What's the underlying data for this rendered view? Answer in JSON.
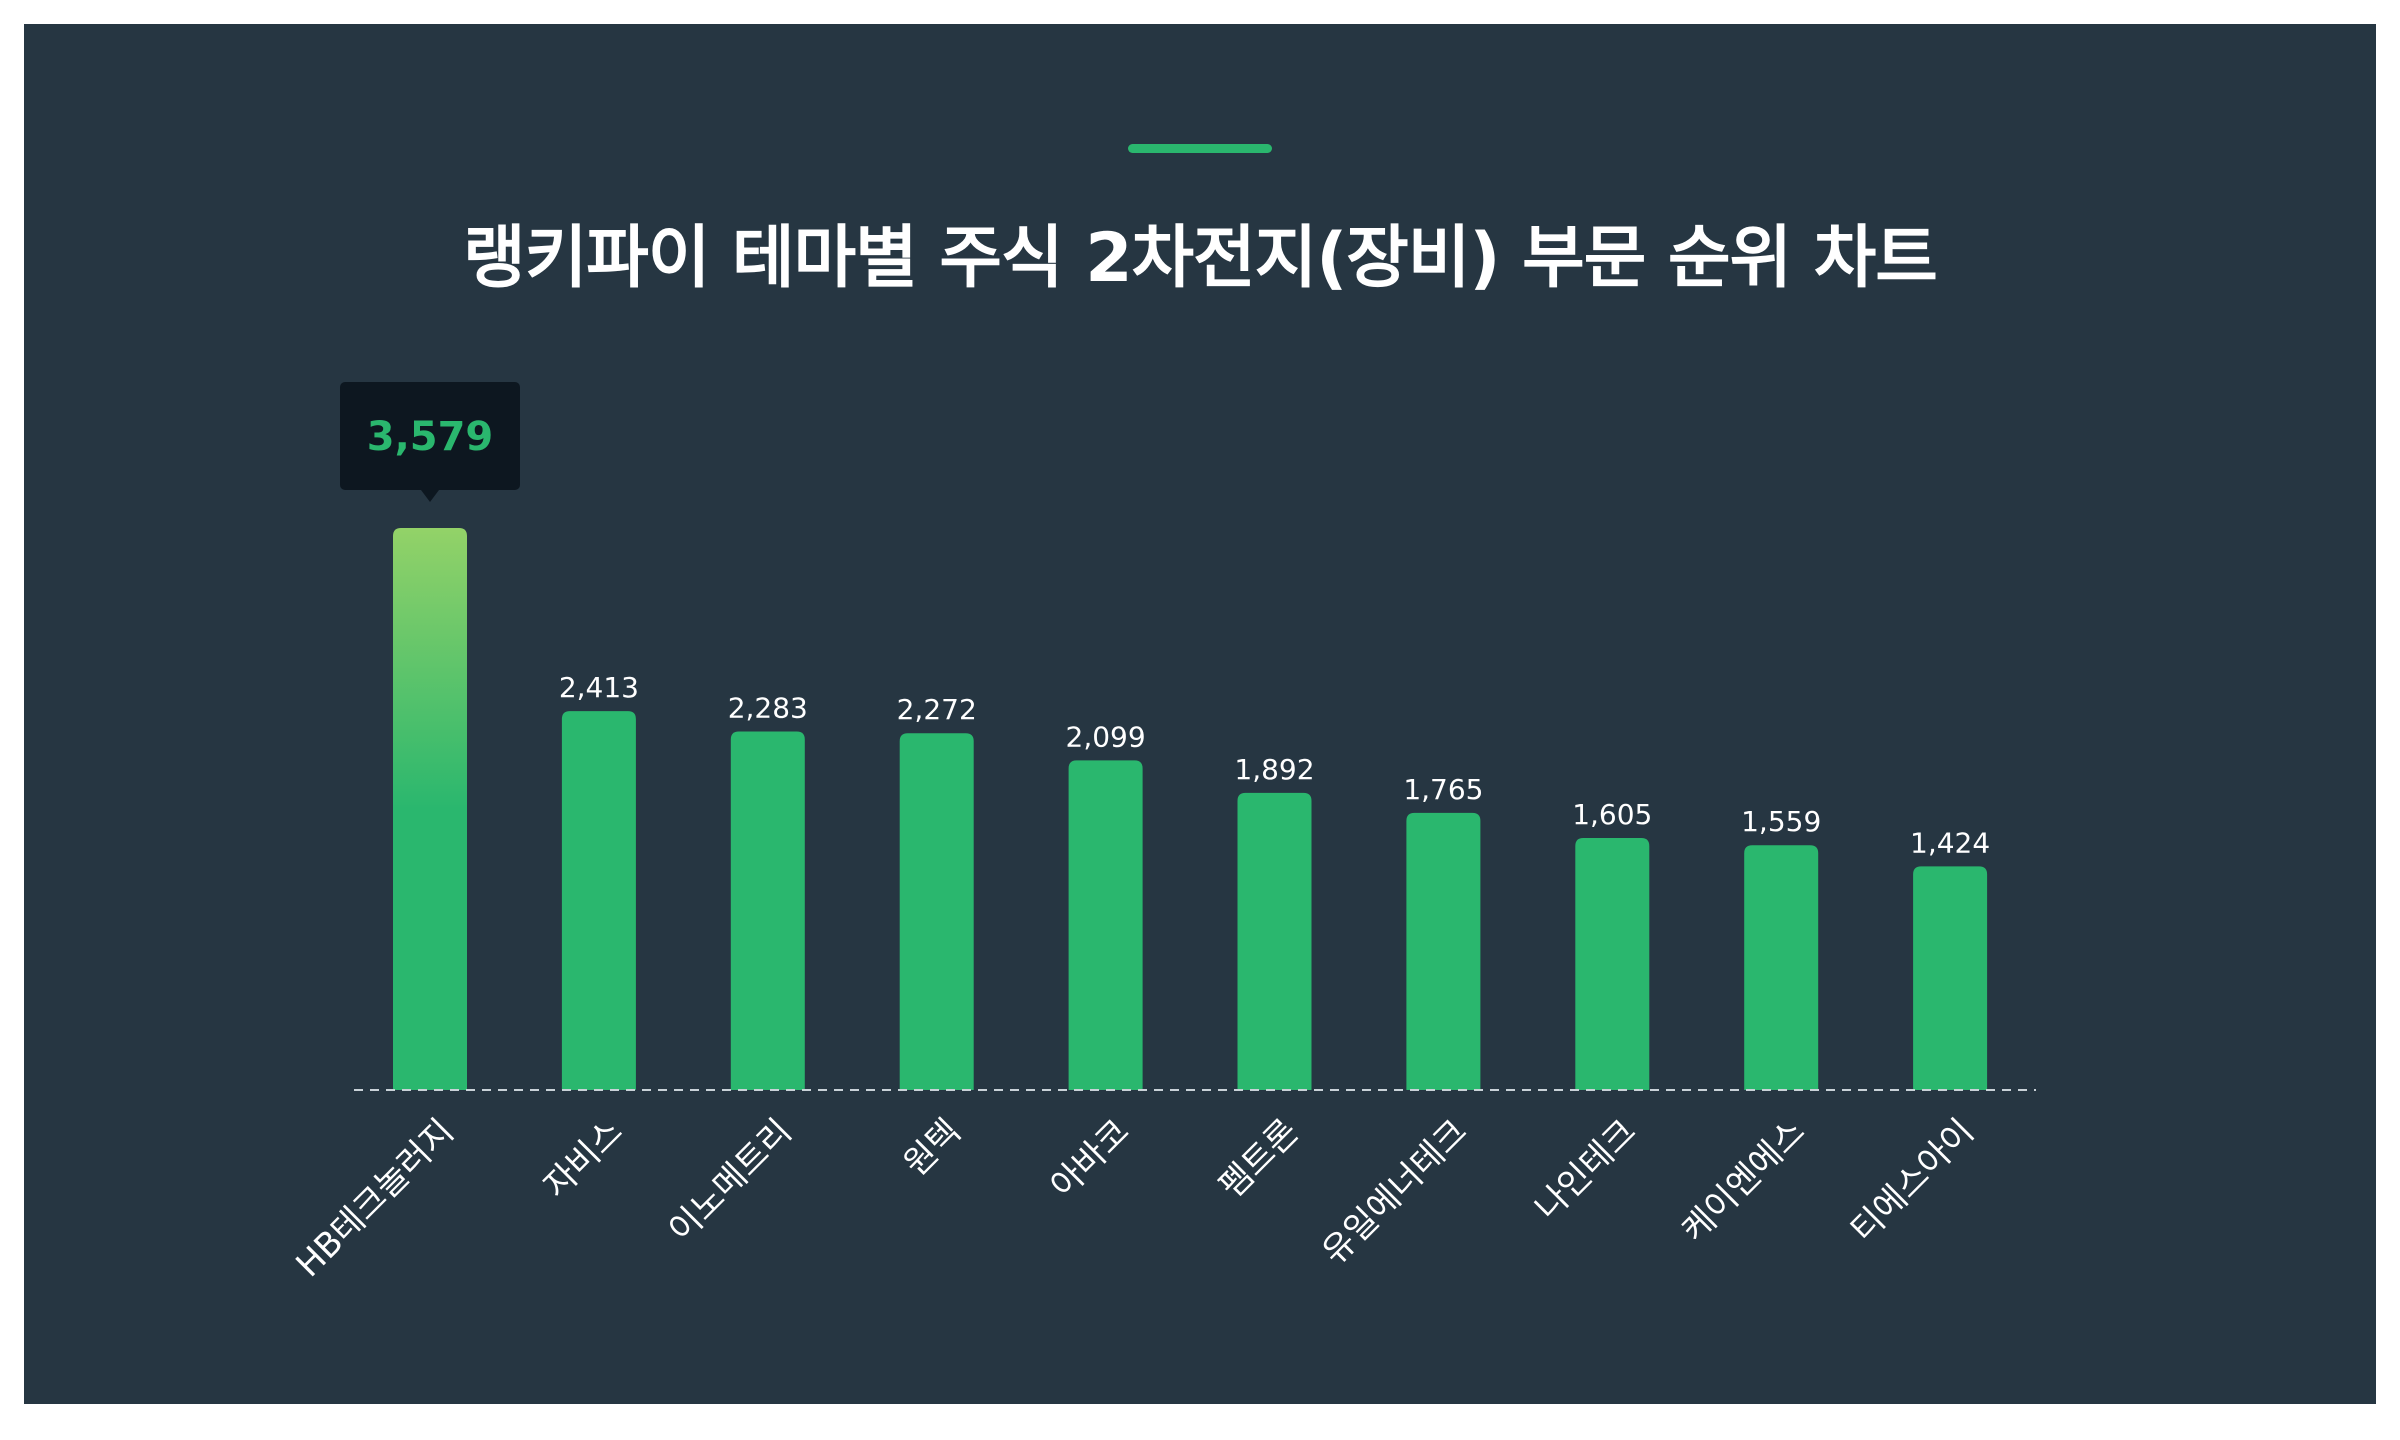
{
  "title": "랭키파이 테마별 주식 2차전지(장비) 부문 순위 차트",
  "colors": {
    "background": "#263642",
    "bar": "#2ab76e",
    "bar_highlight_top": "#93d268",
    "tooltip_bg": "#0d1720",
    "tooltip_text": "#2ab76e",
    "accent": "#2ab76e",
    "baseline": "#c9d2d8"
  },
  "chart_data": {
    "type": "bar",
    "title": "랭키파이 테마별 주식 2차전지(장비) 부문 순위 차트",
    "categories": [
      "HB테크놀러지",
      "자비스",
      "이노메트리",
      "원텍",
      "아바코",
      "펨트론",
      "유일에너테크",
      "나인테크",
      "케이엔에스",
      "티에스아이"
    ],
    "values": [
      3579,
      2413,
      2283,
      2272,
      2099,
      1892,
      1765,
      1605,
      1559,
      1424
    ],
    "value_labels": [
      "3,579",
      "2,413",
      "2,283",
      "2,272",
      "2,099",
      "1,892",
      "1,765",
      "1,605",
      "1,559",
      "1,424"
    ],
    "highlighted_index": 0,
    "ylim": [
      0,
      3579
    ],
    "grid": false,
    "legend": "none",
    "xlabel": "",
    "ylabel": ""
  }
}
